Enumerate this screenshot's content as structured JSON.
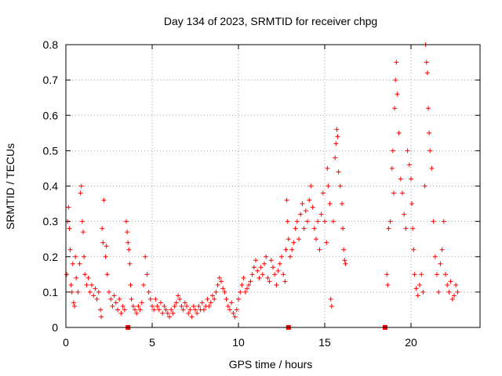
{
  "chart_data": {
    "type": "scatter",
    "title": "Day 134 of 2023, SRMTID for receiver chpg",
    "xlabel": "GPS time / hours",
    "ylabel": "SRMTID / TECUs",
    "xlim": [
      0,
      24
    ],
    "ylim": [
      0,
      0.8
    ],
    "xticks": [
      "0",
      "5",
      "10",
      "15",
      "20"
    ],
    "yticks": [
      "0",
      "0.1",
      "0.2",
      "0.3",
      "0.4",
      "0.5",
      "0.6",
      "0.7",
      "0.8"
    ],
    "grid": true,
    "marker": "+",
    "color": "#ff0000",
    "series": [
      {
        "name": "SRMTID",
        "points": [
          [
            0.05,
            0.15
          ],
          [
            0.1,
            0.3
          ],
          [
            0.15,
            0.34
          ],
          [
            0.2,
            0.28
          ],
          [
            0.25,
            0.22
          ],
          [
            0.3,
            0.12
          ],
          [
            0.35,
            0.1
          ],
          [
            0.4,
            0.18
          ],
          [
            0.45,
            0.07
          ],
          [
            0.5,
            0.06
          ],
          [
            0.55,
            0.2
          ],
          [
            0.6,
            0.14
          ],
          [
            0.7,
            0.1
          ],
          [
            0.8,
            0.18
          ],
          [
            0.85,
            0.38
          ],
          [
            0.9,
            0.4
          ],
          [
            0.95,
            0.3
          ],
          [
            1.0,
            0.27
          ],
          [
            1.05,
            0.2
          ],
          [
            1.1,
            0.15
          ],
          [
            1.2,
            0.12
          ],
          [
            1.3,
            0.14
          ],
          [
            1.4,
            0.1
          ],
          [
            1.5,
            0.12
          ],
          [
            1.6,
            0.09
          ],
          [
            1.7,
            0.11
          ],
          [
            1.8,
            0.08
          ],
          [
            1.9,
            0.1
          ],
          [
            2.0,
            0.05
          ],
          [
            2.05,
            0.03
          ],
          [
            2.1,
            0.28
          ],
          [
            2.15,
            0.24
          ],
          [
            2.2,
            0.36
          ],
          [
            2.3,
            0.2
          ],
          [
            2.35,
            0.23
          ],
          [
            2.4,
            0.15
          ],
          [
            2.5,
            0.1
          ],
          [
            2.6,
            0.08
          ],
          [
            2.7,
            0.06
          ],
          [
            2.8,
            0.09
          ],
          [
            2.9,
            0.07
          ],
          [
            3.0,
            0.05
          ],
          [
            3.1,
            0.08
          ],
          [
            3.2,
            0.04
          ],
          [
            3.3,
            0.06
          ],
          [
            3.4,
            0.05
          ],
          [
            3.5,
            0.3
          ],
          [
            3.55,
            0.27
          ],
          [
            3.6,
            0.24
          ],
          [
            3.65,
            0.22
          ],
          [
            3.7,
            0.18
          ],
          [
            3.75,
            0.12
          ],
          [
            3.8,
            0.08
          ],
          [
            3.9,
            0.06
          ],
          [
            4.0,
            0.05
          ],
          [
            4.1,
            0.04
          ],
          [
            4.2,
            0.06
          ],
          [
            4.3,
            0.05
          ],
          [
            4.4,
            0.07
          ],
          [
            4.5,
            0.12
          ],
          [
            4.6,
            0.2
          ],
          [
            4.7,
            0.15
          ],
          [
            4.8,
            0.1
          ],
          [
            4.9,
            0.08
          ],
          [
            5.0,
            0.06
          ],
          [
            5.1,
            0.05
          ],
          [
            5.2,
            0.08
          ],
          [
            5.3,
            0.06
          ],
          [
            5.4,
            0.05
          ],
          [
            5.5,
            0.07
          ],
          [
            5.6,
            0.04
          ],
          [
            5.7,
            0.06
          ],
          [
            5.8,
            0.05
          ],
          [
            5.9,
            0.04
          ],
          [
            6.0,
            0.03
          ],
          [
            6.1,
            0.05
          ],
          [
            6.2,
            0.04
          ],
          [
            6.3,
            0.06
          ],
          [
            6.4,
            0.07
          ],
          [
            6.5,
            0.09
          ],
          [
            6.6,
            0.08
          ],
          [
            6.7,
            0.06
          ],
          [
            6.8,
            0.05
          ],
          [
            6.9,
            0.07
          ],
          [
            7.0,
            0.06
          ],
          [
            7.1,
            0.04
          ],
          [
            7.2,
            0.05
          ],
          [
            7.3,
            0.03
          ],
          [
            7.4,
            0.06
          ],
          [
            7.5,
            0.05
          ],
          [
            7.6,
            0.04
          ],
          [
            7.7,
            0.06
          ],
          [
            7.8,
            0.05
          ],
          [
            7.9,
            0.07
          ],
          [
            8.0,
            0.05
          ],
          [
            8.1,
            0.06
          ],
          [
            8.2,
            0.08
          ],
          [
            8.3,
            0.06
          ],
          [
            8.4,
            0.07
          ],
          [
            8.5,
            0.09
          ],
          [
            8.6,
            0.08
          ],
          [
            8.7,
            0.1
          ],
          [
            8.8,
            0.12
          ],
          [
            8.9,
            0.14
          ],
          [
            9.0,
            0.13
          ],
          [
            9.1,
            0.11
          ],
          [
            9.2,
            0.1
          ],
          [
            9.3,
            0.08
          ],
          [
            9.4,
            0.06
          ],
          [
            9.5,
            0.05
          ],
          [
            9.6,
            0.07
          ],
          [
            9.7,
            0.04
          ],
          [
            9.8,
            0.03
          ],
          [
            9.9,
            0.05
          ],
          [
            10.0,
            0.08
          ],
          [
            10.1,
            0.1
          ],
          [
            10.2,
            0.12
          ],
          [
            10.3,
            0.14
          ],
          [
            10.4,
            0.1
          ],
          [
            10.5,
            0.11
          ],
          [
            10.6,
            0.12
          ],
          [
            10.7,
            0.13
          ],
          [
            10.8,
            0.15
          ],
          [
            10.9,
            0.17
          ],
          [
            11.0,
            0.19
          ],
          [
            11.1,
            0.16
          ],
          [
            11.2,
            0.14
          ],
          [
            11.3,
            0.17
          ],
          [
            11.4,
            0.15
          ],
          [
            11.5,
            0.18
          ],
          [
            11.6,
            0.2
          ],
          [
            11.7,
            0.14
          ],
          [
            11.8,
            0.13
          ],
          [
            11.9,
            0.19
          ],
          [
            12.0,
            0.17
          ],
          [
            12.1,
            0.15
          ],
          [
            12.2,
            0.12
          ],
          [
            12.3,
            0.16
          ],
          [
            12.4,
            0.18
          ],
          [
            12.5,
            0.2
          ],
          [
            12.6,
            0.15
          ],
          [
            12.7,
            0.13
          ],
          [
            12.75,
            0.22
          ],
          [
            12.8,
            0.36
          ],
          [
            12.85,
            0.3
          ],
          [
            12.9,
            0.25
          ],
          [
            13.0,
            0.2
          ],
          [
            13.1,
            0.22
          ],
          [
            13.2,
            0.24
          ],
          [
            13.3,
            0.28
          ],
          [
            13.4,
            0.3
          ],
          [
            13.5,
            0.25
          ],
          [
            13.6,
            0.32
          ],
          [
            13.7,
            0.35
          ],
          [
            13.8,
            0.28
          ],
          [
            13.9,
            0.33
          ],
          [
            14.0,
            0.3
          ],
          [
            14.1,
            0.36
          ],
          [
            14.2,
            0.4
          ],
          [
            14.3,
            0.34
          ],
          [
            14.4,
            0.28
          ],
          [
            14.5,
            0.25
          ],
          [
            14.6,
            0.3
          ],
          [
            14.7,
            0.22
          ],
          [
            14.8,
            0.32
          ],
          [
            14.9,
            0.38
          ],
          [
            15.0,
            0.3
          ],
          [
            15.1,
            0.24
          ],
          [
            15.15,
            0.45
          ],
          [
            15.2,
            0.4
          ],
          [
            15.3,
            0.35
          ],
          [
            15.35,
            0.08
          ],
          [
            15.4,
            0.06
          ],
          [
            15.5,
            0.3
          ],
          [
            15.6,
            0.48
          ],
          [
            15.65,
            0.52
          ],
          [
            15.7,
            0.56
          ],
          [
            15.75,
            0.54
          ],
          [
            15.8,
            0.44
          ],
          [
            15.9,
            0.4
          ],
          [
            16.0,
            0.35
          ],
          [
            16.05,
            0.28
          ],
          [
            16.1,
            0.22
          ],
          [
            16.15,
            0.19
          ],
          [
            16.2,
            0.18
          ],
          [
            18.6,
            0.15
          ],
          [
            18.65,
            0.12
          ],
          [
            18.7,
            0.28
          ],
          [
            18.8,
            0.3
          ],
          [
            18.9,
            0.45
          ],
          [
            18.95,
            0.5
          ],
          [
            19.0,
            0.38
          ],
          [
            19.05,
            0.62
          ],
          [
            19.1,
            0.7
          ],
          [
            19.15,
            0.75
          ],
          [
            19.2,
            0.66
          ],
          [
            19.3,
            0.55
          ],
          [
            19.4,
            0.42
          ],
          [
            19.5,
            0.38
          ],
          [
            19.6,
            0.32
          ],
          [
            19.7,
            0.28
          ],
          [
            19.8,
            0.5
          ],
          [
            19.9,
            0.46
          ],
          [
            20.0,
            0.42
          ],
          [
            20.05,
            0.35
          ],
          [
            20.1,
            0.28
          ],
          [
            20.15,
            0.22
          ],
          [
            20.2,
            0.15
          ],
          [
            20.3,
            0.11
          ],
          [
            20.4,
            0.09
          ],
          [
            20.5,
            0.12
          ],
          [
            20.6,
            0.15
          ],
          [
            20.7,
            0.1
          ],
          [
            20.8,
            0.4
          ],
          [
            20.85,
            0.8
          ],
          [
            20.9,
            0.75
          ],
          [
            20.95,
            0.72
          ],
          [
            21.0,
            0.62
          ],
          [
            21.05,
            0.55
          ],
          [
            21.1,
            0.5
          ],
          [
            21.2,
            0.45
          ],
          [
            21.3,
            0.3
          ],
          [
            21.4,
            0.2
          ],
          [
            21.5,
            0.15
          ],
          [
            21.6,
            0.1
          ],
          [
            21.7,
            0.18
          ],
          [
            21.8,
            0.22
          ],
          [
            21.9,
            0.3
          ],
          [
            22.0,
            0.15
          ],
          [
            22.1,
            0.12
          ],
          [
            22.2,
            0.1
          ],
          [
            22.3,
            0.13
          ],
          [
            22.4,
            0.08
          ],
          [
            22.5,
            0.09
          ],
          [
            22.6,
            0.12
          ],
          [
            22.7,
            0.1
          ]
        ]
      }
    ],
    "gap_markers": [
      3.6,
      12.9,
      18.5
    ]
  }
}
